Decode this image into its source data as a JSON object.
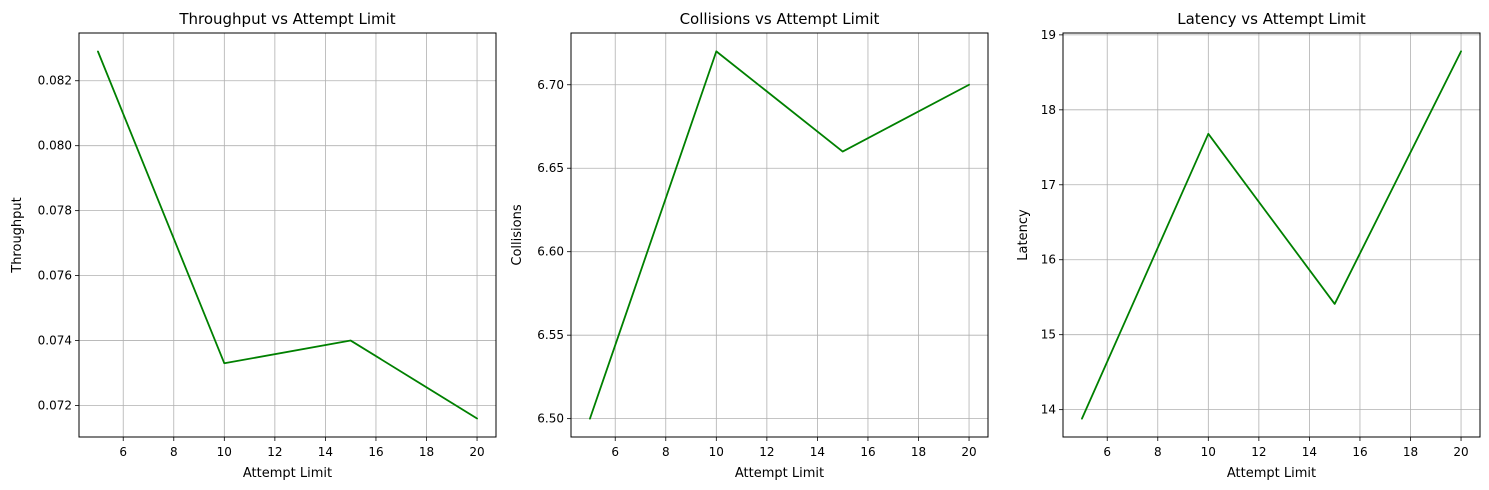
{
  "chart_data": [
    {
      "type": "line",
      "title": "Throughput vs Attempt Limit",
      "xlabel": "Attempt Limit",
      "ylabel": "Throughput",
      "x": [
        5,
        10,
        15,
        20
      ],
      "series": [
        {
          "values": [
            0.0829,
            0.0733,
            0.074,
            0.0716
          ],
          "color": "#008000"
        }
      ],
      "xlim": [
        4.25,
        20.75
      ],
      "ylim": [
        0.07103,
        0.08347
      ],
      "xticks": [
        6,
        8,
        10,
        12,
        14,
        16,
        18,
        20
      ],
      "xtick_labels": [
        "6",
        "8",
        "10",
        "12",
        "14",
        "16",
        "18",
        "20"
      ],
      "yticks": [
        0.072,
        0.074,
        0.076,
        0.078,
        0.08,
        0.082
      ],
      "ytick_labels": [
        "0.072",
        "0.074",
        "0.076",
        "0.078",
        "0.080",
        "0.082"
      ],
      "grid": true
    },
    {
      "type": "line",
      "title": "Collisions vs Attempt Limit",
      "xlabel": "Attempt Limit",
      "ylabel": "Collisions",
      "x": [
        5,
        10,
        15,
        20
      ],
      "series": [
        {
          "values": [
            6.5,
            6.72,
            6.66,
            6.7
          ],
          "color": "#008000"
        }
      ],
      "xlim": [
        4.25,
        20.75
      ],
      "ylim": [
        6.489,
        6.731
      ],
      "xticks": [
        6,
        8,
        10,
        12,
        14,
        16,
        18,
        20
      ],
      "xtick_labels": [
        "6",
        "8",
        "10",
        "12",
        "14",
        "16",
        "18",
        "20"
      ],
      "yticks": [
        6.5,
        6.55,
        6.6,
        6.65,
        6.7
      ],
      "ytick_labels": [
        "6.50",
        "6.55",
        "6.60",
        "6.65",
        "6.70"
      ],
      "grid": true
    },
    {
      "type": "line",
      "title": "Latency vs Attempt Limit",
      "xlabel": "Attempt Limit",
      "ylabel": "Latency",
      "x": [
        5,
        10,
        15,
        20
      ],
      "series": [
        {
          "values": [
            13.88,
            17.68,
            15.41,
            18.78
          ],
          "color": "#008000"
        }
      ],
      "xlim": [
        4.25,
        20.75
      ],
      "ylim": [
        13.635,
        19.025
      ],
      "xticks": [
        6,
        8,
        10,
        12,
        14,
        16,
        18,
        20
      ],
      "xtick_labels": [
        "6",
        "8",
        "10",
        "12",
        "14",
        "16",
        "18",
        "20"
      ],
      "yticks": [
        14,
        15,
        16,
        17,
        18,
        19
      ],
      "ytick_labels": [
        "14",
        "15",
        "16",
        "17",
        "18",
        "19"
      ],
      "grid": true
    }
  ]
}
